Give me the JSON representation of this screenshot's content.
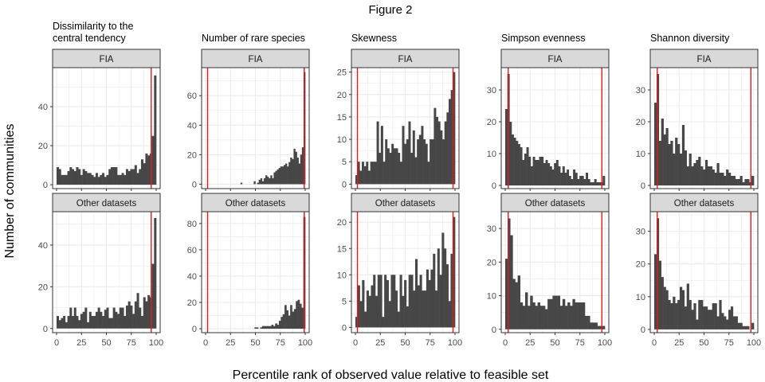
{
  "figure": {
    "title": "Figure 2",
    "xlabel": "Percentile rank of observed value relative to feasible set",
    "ylabel": "Number of communities"
  },
  "colors": {
    "bar": "#474747",
    "vline": "#e31a1c",
    "strip": "#d9d9d9",
    "grid": "#ebebeb"
  },
  "chart_data": {
    "type": "bar",
    "facet_rows": [
      "FIA",
      "Other datasets"
    ],
    "columns": [
      {
        "title_lines": [
          "Dissimilarity to the",
          "central tendency"
        ],
        "xticks": [
          0,
          25,
          50,
          75,
          100
        ],
        "panels": [
          {
            "row": "FIA",
            "ylim": [
              -2,
              60
            ],
            "yticks": [
              0,
              20,
              40
            ],
            "vlines": [
              95
            ],
            "values": [
              9,
              8,
              5,
              5,
              5,
              7,
              9,
              8,
              7,
              9,
              8,
              5,
              8,
              7,
              6,
              6,
              5,
              4,
              6,
              4,
              5,
              6,
              4,
              5,
              8,
              9,
              9,
              9,
              5,
              5,
              6,
              5,
              8,
              7,
              8,
              8,
              10,
              6,
              8,
              13,
              11,
              16,
              15,
              16,
              25,
              56
            ]
          },
          {
            "row": "Other datasets",
            "ylim": [
              -2,
              56
            ],
            "yticks": [
              0,
              20,
              40
            ],
            "vlines": [
              95
            ],
            "values": [
              6,
              4,
              5,
              6,
              3,
              6,
              10,
              6,
              10,
              6,
              4,
              7,
              8,
              10,
              3,
              8,
              6,
              6,
              8,
              10,
              8,
              6,
              9,
              10,
              5,
              5,
              10,
              8,
              7,
              10,
              10,
              6,
              11,
              13,
              11,
              7,
              13,
              17,
              10,
              6,
              15,
              13,
              16,
              15,
              31,
              53
            ]
          }
        ]
      },
      {
        "title_lines": [
          "Number of rare species"
        ],
        "xticks": [
          0,
          25,
          50,
          75,
          100
        ],
        "panels": [
          {
            "row": "FIA",
            "ylim": [
              -3,
              79
            ],
            "yticks": [
              0,
              20,
              40,
              60
            ],
            "vlines": [
              2,
              99
            ],
            "values": [
              0,
              0,
              0,
              0,
              0,
              0,
              0,
              0,
              0,
              0,
              0,
              0,
              0,
              0,
              0,
              0,
              0,
              0,
              0,
              0,
              0,
              1,
              0,
              0,
              0,
              0,
              0,
              0,
              0,
              2,
              0,
              1,
              3,
              4,
              2,
              4,
              6,
              5,
              4,
              6,
              4,
              8,
              9,
              10,
              11,
              12,
              12,
              13,
              14,
              12,
              15,
              18,
              17,
              24,
              22,
              18,
              14,
              20,
              25,
              76
            ]
          },
          {
            "row": "Other datasets",
            "ylim": [
              -3,
              89
            ],
            "yticks": [
              0,
              20,
              40,
              60,
              80
            ],
            "vlines": [
              2,
              99
            ],
            "values": [
              0,
              0,
              0,
              0,
              0,
              0,
              0,
              0,
              0,
              0,
              0,
              0,
              0,
              0,
              0,
              0,
              0,
              0,
              0,
              0,
              0,
              0,
              0,
              0,
              0,
              0,
              1,
              1,
              0,
              1,
              2,
              2,
              2,
              2,
              2,
              3,
              2,
              4,
              3,
              6,
              9,
              11,
              18,
              14,
              10,
              18,
              13,
              15,
              21,
              22,
              19,
              16,
              85
            ]
          }
        ]
      },
      {
        "title_lines": [
          "Skewness"
        ],
        "xticks": [
          0,
          25,
          50,
          75,
          100
        ],
        "panels": [
          {
            "row": "FIA",
            "ylim": [
              -1,
              26
            ],
            "yticks": [
              0,
              5,
              10,
              15,
              20,
              25
            ],
            "vlines": [
              2,
              98
            ],
            "values": [
              2,
              5,
              3,
              5,
              4,
              5,
              3,
              5,
              5,
              5,
              14,
              7,
              13,
              5,
              10,
              8,
              7,
              9,
              8,
              8,
              7,
              5,
              13,
              9,
              10,
              14,
              7,
              12,
              6,
              10,
              11,
              13,
              10,
              9,
              5,
              10,
              10,
              17,
              15,
              14,
              12,
              10,
              14,
              16,
              19,
              21,
              25
            ]
          },
          {
            "row": "Other datasets",
            "ylim": [
              -1,
              22
            ],
            "yticks": [
              0,
              5,
              10,
              15,
              20
            ],
            "vlines": [
              2,
              98
            ],
            "values": [
              2,
              8,
              5,
              9,
              3,
              7,
              6,
              8,
              10,
              6,
              10,
              10,
              2,
              10,
              9,
              5,
              10,
              10,
              7,
              3,
              10,
              6,
              9,
              4,
              10,
              10,
              7,
              13,
              8,
              10,
              7,
              7,
              11,
              9,
              11,
              14,
              7,
              15,
              10,
              18,
              15,
              12,
              5,
              14,
              21
            ]
          }
        ]
      },
      {
        "title_lines": [
          "Simpson evenness"
        ],
        "xticks": [
          0,
          25,
          50,
          75,
          100
        ],
        "panels": [
          {
            "row": "FIA",
            "ylim": [
              -1,
              37
            ],
            "yticks": [
              0,
              10,
              20,
              30
            ],
            "vlines": [
              3,
              97
            ],
            "values": [
              24,
              35,
              20,
              16,
              15,
              14,
              13,
              12,
              8,
              10,
              12,
              9,
              6,
              9,
              8,
              8,
              9,
              9,
              7,
              8,
              7,
              6,
              5,
              7,
              8,
              6,
              4,
              6,
              4,
              5,
              3,
              2,
              5,
              4,
              2,
              3,
              3,
              2,
              4,
              2,
              1,
              1,
              2,
              1,
              1,
              1,
              3
            ]
          },
          {
            "row": "Other datasets",
            "ylim": [
              -1,
              35
            ],
            "yticks": [
              0,
              10,
              20,
              30
            ],
            "vlines": [
              3,
              97
            ],
            "values": [
              21,
              33,
              28,
              15,
              14,
              16,
              8,
              7,
              11,
              7,
              10,
              8,
              7,
              8,
              7,
              7,
              6,
              9,
              9,
              10,
              10,
              10,
              7,
              9,
              7,
              8,
              7,
              9,
              8,
              8,
              8,
              8,
              4,
              4,
              2,
              2,
              2,
              1,
              1,
              1
            ]
          }
        ]
      },
      {
        "title_lines": [
          "Shannon diversity"
        ],
        "xticks": [
          0,
          25,
          50,
          75,
          100
        ],
        "panels": [
          {
            "row": "FIA",
            "ylim": [
              -1,
              37
            ],
            "yticks": [
              0,
              10,
              20,
              30
            ],
            "vlines": [
              3,
              97
            ],
            "values": [
              26,
              35,
              14,
              21,
              16,
              18,
              13,
              14,
              10,
              15,
              13,
              10,
              19,
              11,
              6,
              10,
              6,
              7,
              8,
              9,
              6,
              5,
              8,
              6,
              6,
              5,
              4,
              7,
              4,
              4,
              3,
              5,
              4,
              3,
              3,
              2,
              2,
              3,
              1,
              2,
              2,
              1,
              3
            ]
          },
          {
            "row": "Other datasets",
            "ylim": [
              -1,
              36
            ],
            "yticks": [
              0,
              10,
              20,
              30
            ],
            "vlines": [
              3,
              97
            ],
            "values": [
              23,
              34,
              21,
              16,
              13,
              12,
              9,
              8,
              10,
              8,
              9,
              13,
              12,
              7,
              14,
              9,
              6,
              8,
              3,
              9,
              9,
              7,
              7,
              6,
              6,
              8,
              8,
              4,
              9,
              5,
              4,
              3,
              6,
              7,
              4,
              4,
              2,
              2,
              1,
              1,
              1,
              0,
              2
            ]
          }
        ]
      }
    ]
  }
}
